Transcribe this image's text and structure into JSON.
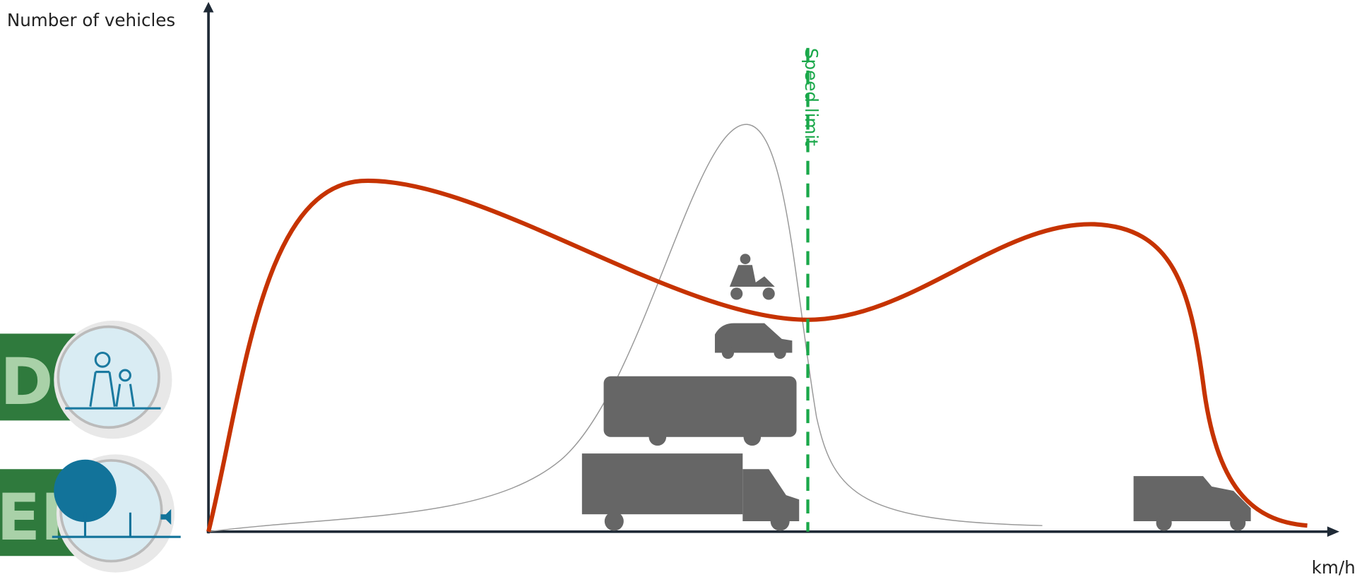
{
  "axis": {
    "y_label": "Number of vehicles",
    "x_label": "km/h"
  },
  "annotation": {
    "speed_limit": "Speed limit"
  },
  "side_panels": [
    {
      "label": "D"
    },
    {
      "label": "ENT"
    }
  ]
}
